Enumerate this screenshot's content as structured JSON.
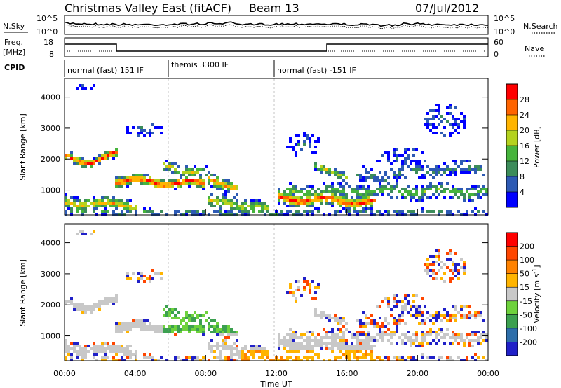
{
  "header": {
    "title": "Christmas Valley East (fitACF)",
    "beam": "Beam 13",
    "date": "07/Jul/2012"
  },
  "noise_panel": {
    "left_label": "N.Sky",
    "right_label": "N.Search",
    "ticks": [
      "10^5",
      "10^0"
    ]
  },
  "freq_panel": {
    "left_label_1": "Freq.",
    "left_label_2": "[MHz]",
    "right_label": "Nave",
    "left_ticks": [
      "18",
      "8"
    ],
    "right_ticks": [
      "60",
      "0"
    ]
  },
  "cpid": {
    "label": "CPID",
    "segments": [
      {
        "label": "normal (fast) 151 IF",
        "start": 0,
        "end": 6
      },
      {
        "label": "themis 3300 IF",
        "start": 6,
        "end": 12
      },
      {
        "label": "normal (fast) -151 IF",
        "start": 12,
        "end": 24
      }
    ]
  },
  "chart_data": [
    {
      "type": "heatmap",
      "name": "power",
      "ylabel": "Slant Range [km]",
      "xlim": [
        0,
        24
      ],
      "ylim": [
        200,
        4600
      ],
      "yticks": [
        "4000",
        "3000",
        "2000",
        "1000"
      ],
      "colorbar": {
        "label": "Power [dB]",
        "ticks": [
          "28",
          "24",
          "20",
          "16",
          "12",
          "8",
          "4"
        ],
        "range": [
          0,
          32
        ],
        "colors": [
          "#0000ff",
          "#2d5ab4",
          "#3c8c5a",
          "#46b43c",
          "#b4d21e",
          "#ffb400",
          "#ff6400",
          "#ff0000"
        ]
      }
    },
    {
      "type": "heatmap",
      "name": "velocity",
      "ylabel": "Slant Range [km]",
      "xlabel": "Time UT",
      "xlim": [
        0,
        24
      ],
      "ylim": [
        200,
        4600
      ],
      "yticks": [
        "4000",
        "3000",
        "2000",
        "1000"
      ],
      "xticks": [
        "00:00",
        "04:00",
        "08:00",
        "12:00",
        "16:00",
        "20:00",
        "00:00"
      ],
      "colorbar": {
        "label": "Velocity [m s^-1]",
        "ticks": [
          "200",
          "100",
          "50",
          "15",
          "-15",
          "-50",
          "-100",
          "-200"
        ],
        "colors": [
          "#2020c8",
          "#2d6eaa",
          "#3ca050",
          "#6ed23c",
          "#c8c8c8",
          "#ffb400",
          "#ff8200",
          "#ff4600",
          "#ff0000"
        ]
      }
    }
  ]
}
